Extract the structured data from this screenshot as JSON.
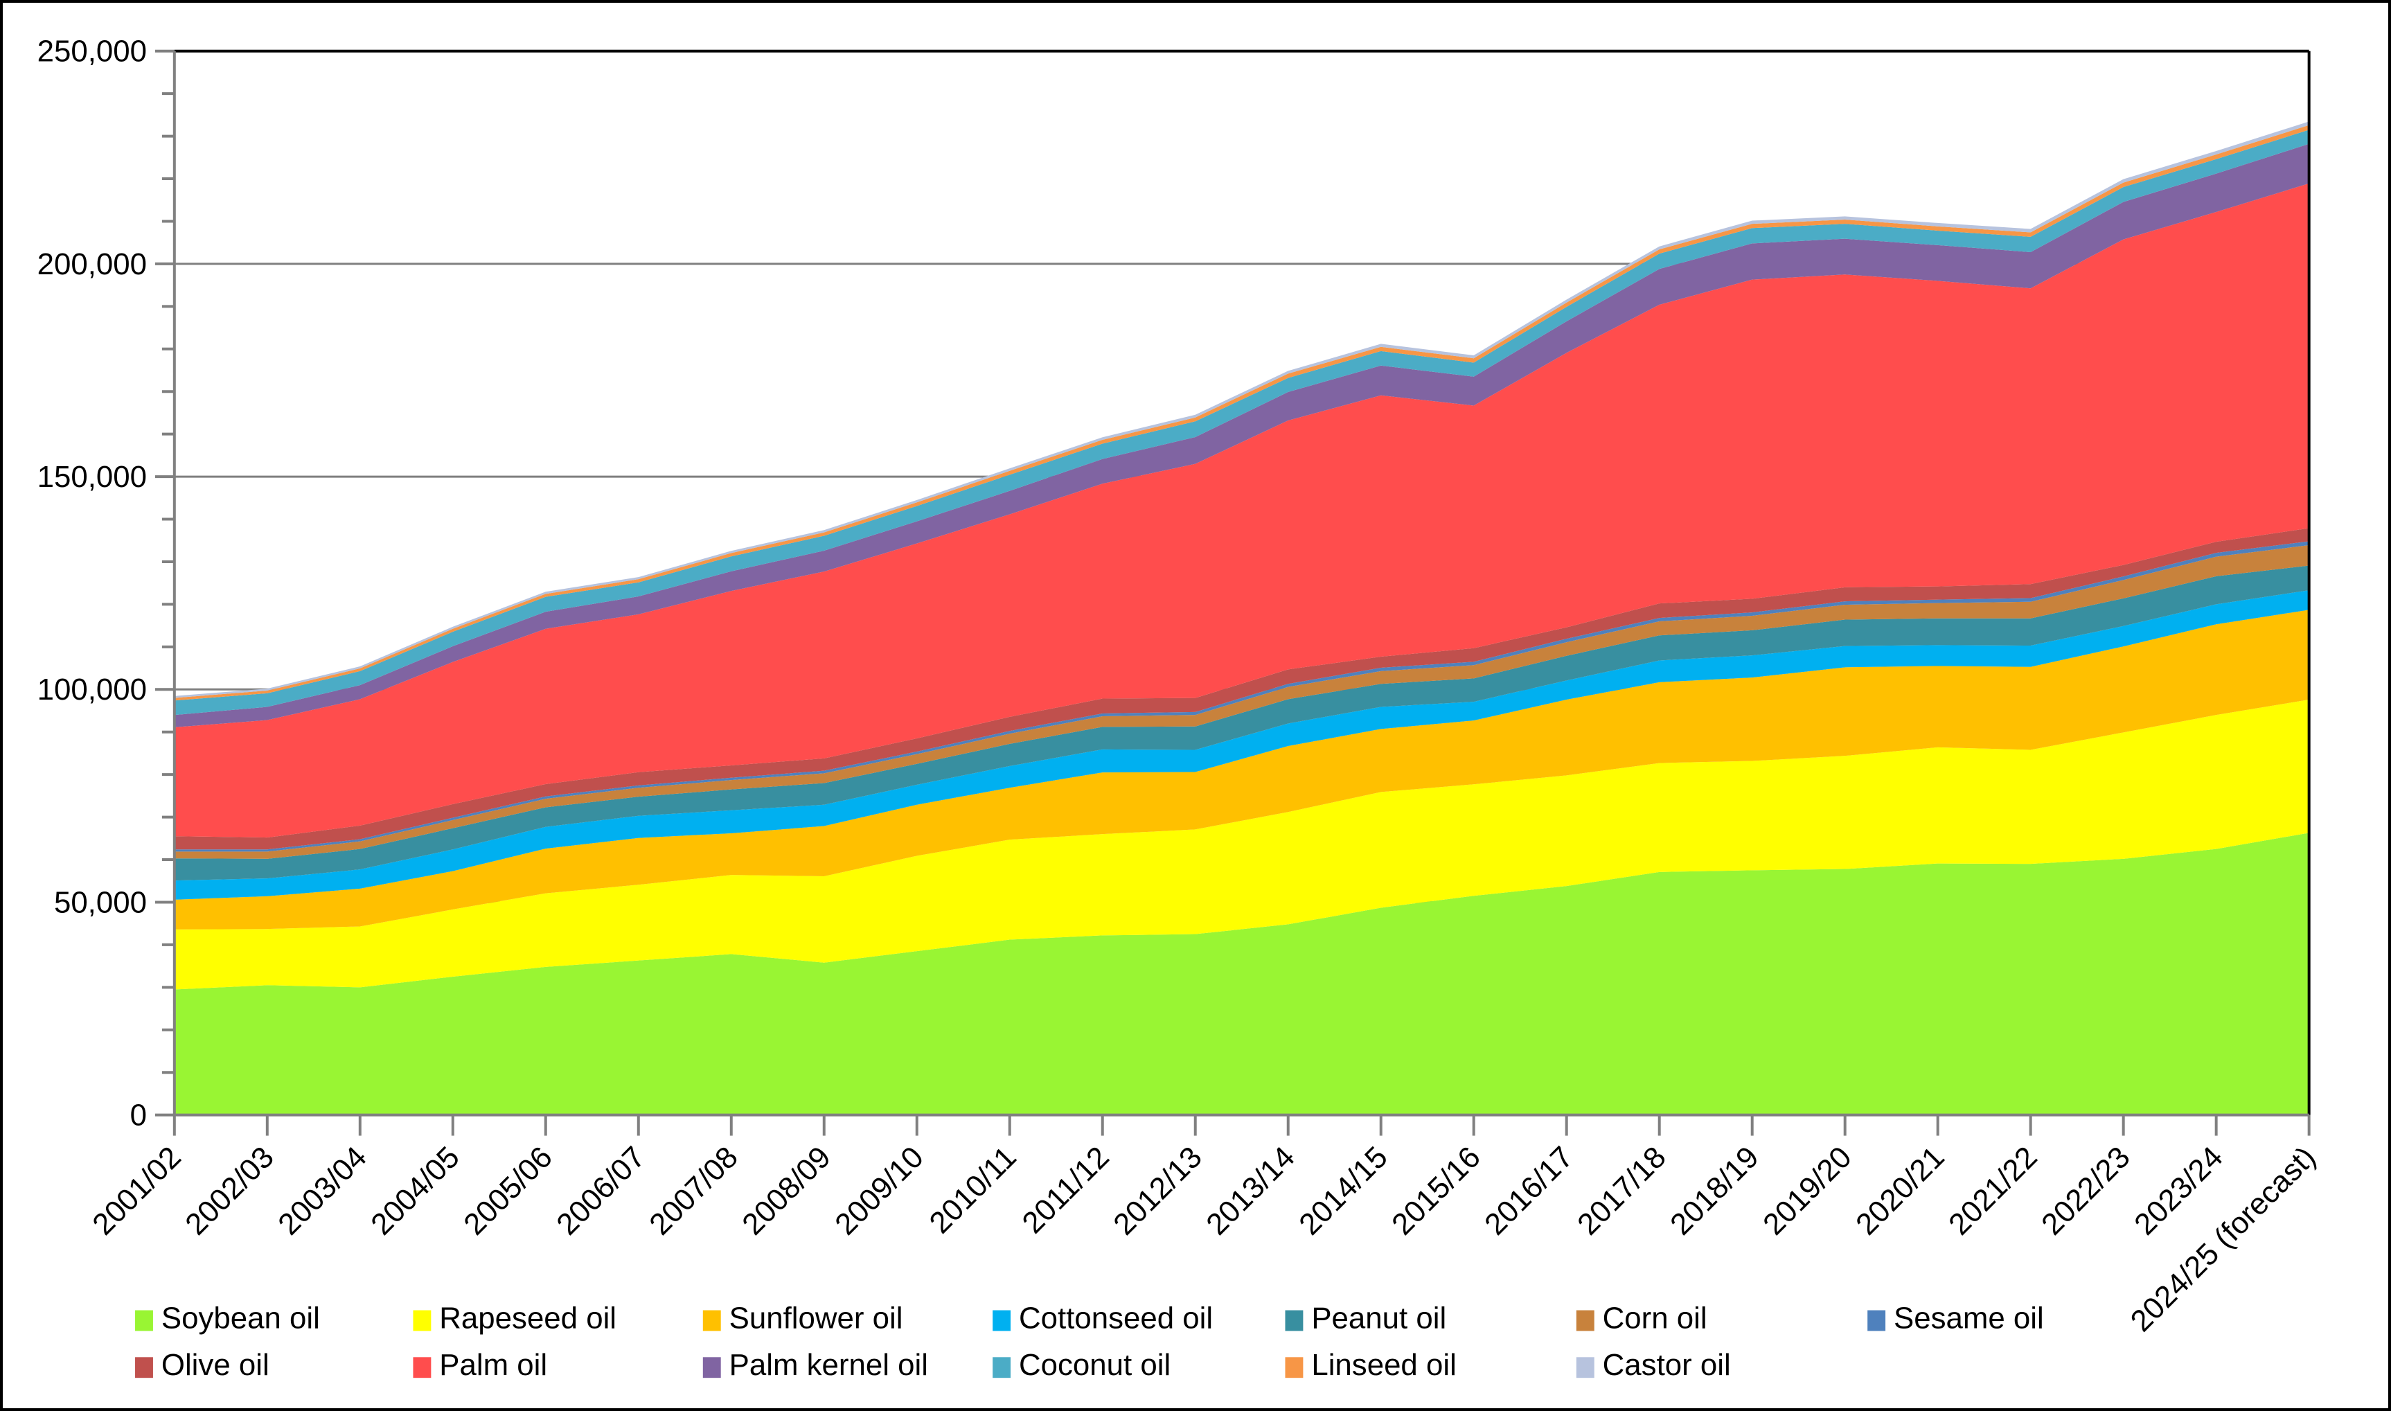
{
  "chart_data": {
    "type": "area",
    "stacked": true,
    "title": "",
    "xlabel": "",
    "ylabel": "",
    "ylim": [
      0,
      250000
    ],
    "grid": "horizontal-major",
    "gridline_values": [
      50000,
      100000,
      150000,
      200000,
      250000
    ],
    "y_major_tick_interval": 50000,
    "y_minor_tick_interval": 10000,
    "y_tick_labels": [
      "0",
      "50,000",
      "100,000",
      "150,000",
      "200,000",
      "250,000"
    ],
    "x_tick_label_rotation_deg": 45,
    "legend_position": "bottom",
    "legend_rows": [
      [
        0,
        1,
        2,
        3,
        4,
        5,
        6
      ],
      [
        7,
        8,
        9,
        10,
        11,
        12
      ]
    ],
    "axis_color": "#808080",
    "border_color": "#000000",
    "gridline_color": "#7f7f7f",
    "text_color": "#000000",
    "categories": [
      "2001/02",
      "2002/03",
      "2003/04",
      "2004/05",
      "2005/06",
      "2006/07",
      "2007/08",
      "2008/09",
      "2009/10",
      "2010/11",
      "2011/12",
      "2012/13",
      "2013/14",
      "2014/15",
      "2015/16",
      "2016/17",
      "2017/18",
      "2018/19",
      "2019/20",
      "2020/21",
      "2021/22",
      "2022/23",
      "2023/24",
      "2024/25 (forecast)"
    ],
    "units": "thousand tonnes (estimated from gridlines)",
    "series": [
      {
        "name": "Soybean oil",
        "color": "#99F533",
        "values": [
          29500,
          30500,
          30000,
          32500,
          34800,
          36300,
          37800,
          35800,
          38500,
          41200,
          42200,
          42500,
          44800,
          48700,
          51500,
          53800,
          57100,
          57500,
          57800,
          59100,
          59000,
          60200,
          62500,
          66300
        ]
      },
      {
        "name": "Rapeseed oil",
        "color": "#FFFF00",
        "values": [
          14100,
          13200,
          14300,
          15800,
          17300,
          17800,
          18600,
          20300,
          22400,
          23500,
          23800,
          24600,
          26400,
          27200,
          26200,
          26000,
          25600,
          25700,
          26600,
          27300,
          26800,
          29700,
          31500,
          31300
        ]
      },
      {
        "name": "Sunflower oil",
        "color": "#FFC000",
        "values": [
          7000,
          7700,
          8900,
          9000,
          10500,
          11000,
          9800,
          11800,
          12000,
          12200,
          14500,
          13500,
          15500,
          14800,
          15000,
          17800,
          19000,
          19600,
          20800,
          19100,
          19500,
          20200,
          21300,
          21100
        ]
      },
      {
        "name": "Cottonseed oil",
        "color": "#00B0F0",
        "values": [
          4500,
          4200,
          4500,
          5100,
          5100,
          5200,
          5400,
          5000,
          4700,
          5100,
          5400,
          5200,
          5300,
          5200,
          4400,
          4500,
          5100,
          5200,
          5000,
          4900,
          5000,
          4800,
          4700,
          4600
        ]
      },
      {
        "name": "Peanut oil",
        "color": "#388FA0",
        "values": [
          5200,
          4600,
          4800,
          5000,
          4600,
          4500,
          4900,
          5100,
          4900,
          5200,
          5300,
          5500,
          5700,
          5400,
          5500,
          5800,
          5900,
          5900,
          6200,
          6300,
          6400,
          6500,
          6600,
          5800
        ]
      },
      {
        "name": "Corn oil",
        "color": "#C8823C",
        "values": [
          1600,
          1700,
          1800,
          1900,
          2000,
          2100,
          2200,
          2300,
          2300,
          2400,
          2500,
          2700,
          2900,
          3000,
          3100,
          3200,
          3300,
          3400,
          3500,
          3600,
          3900,
          4300,
          4600,
          4800
        ]
      },
      {
        "name": "Sesame oil",
        "color": "#4F81BD",
        "values": [
          500,
          500,
          500,
          550,
          550,
          550,
          550,
          600,
          600,
          650,
          650,
          700,
          700,
          800,
          800,
          800,
          800,
          800,
          800,
          800,
          850,
          850,
          900,
          900
        ]
      },
      {
        "name": "Olive oil",
        "color": "#C0504D",
        "values": [
          3100,
          2800,
          3200,
          3200,
          2900,
          3100,
          2900,
          2900,
          3100,
          3300,
          3500,
          3300,
          3400,
          2600,
          3200,
          2700,
          3400,
          3200,
          3300,
          3100,
          3300,
          2700,
          2600,
          3100
        ]
      },
      {
        "name": "Palm oil",
        "color": "#FF4D4D",
        "values": [
          25600,
          27600,
          29700,
          33400,
          36500,
          37100,
          41000,
          43900,
          45800,
          47600,
          50500,
          55000,
          58500,
          61400,
          57000,
          64500,
          70200,
          75000,
          73500,
          71800,
          69500,
          76500,
          77500,
          81000
        ]
      },
      {
        "name": "Palm kernel oil",
        "color": "#8064A2",
        "values": [
          2900,
          3100,
          3300,
          3700,
          4000,
          4200,
          4600,
          4900,
          5200,
          5500,
          5800,
          6300,
          6700,
          7000,
          6800,
          7400,
          8400,
          8500,
          8400,
          8400,
          8500,
          8800,
          9000,
          9300
        ]
      },
      {
        "name": "Coconut oil",
        "color": "#4BACC6",
        "values": [
          3400,
          3200,
          3300,
          3400,
          3500,
          3300,
          3500,
          3500,
          3600,
          3800,
          3600,
          3700,
          3300,
          3400,
          3300,
          3400,
          3600,
          3600,
          3500,
          3400,
          3600,
          3500,
          3400,
          3300
        ]
      },
      {
        "name": "Linseed oil",
        "color": "#F79646",
        "values": [
          600,
          620,
          650,
          700,
          700,
          750,
          800,
          800,
          850,
          900,
          900,
          900,
          1000,
          1000,
          1000,
          1000,
          1000,
          1000,
          1000,
          1000,
          1050,
          1050,
          1100,
          1100
        ]
      },
      {
        "name": "Castor oil",
        "color": "#B7C3DE",
        "values": [
          450,
          460,
          470,
          480,
          500,
          500,
          500,
          550,
          550,
          600,
          600,
          650,
          650,
          700,
          700,
          700,
          700,
          750,
          750,
          800,
          800,
          800,
          820,
          850
        ]
      }
    ]
  }
}
